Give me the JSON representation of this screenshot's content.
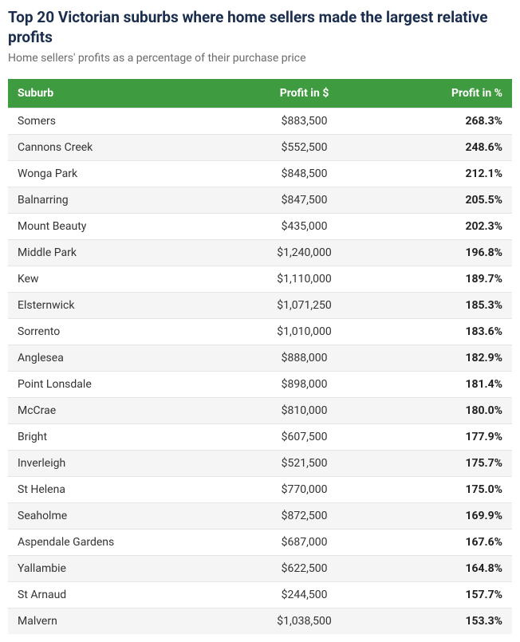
{
  "header": {
    "title": "Top 20 Victorian suburbs where home sellers made the largest relative profits",
    "subtitle": "Home sellers' profits as a percentage of their purchase price"
  },
  "table": {
    "type": "table",
    "header_bg": "#3f9b3f",
    "header_text_color": "#ffffff",
    "row_alt_bg": "#f5f5f5",
    "border_color": "#e5e5e5",
    "columns": [
      {
        "key": "suburb",
        "label": "Suburb",
        "align": "left"
      },
      {
        "key": "profit_dollar",
        "label": "Profit in $",
        "align": "center"
      },
      {
        "key": "profit_pct",
        "label": "Profit in %",
        "align": "right",
        "bold": true
      }
    ],
    "rows": [
      {
        "suburb": "Somers",
        "profit_dollar": "$883,500",
        "profit_pct": "268.3%"
      },
      {
        "suburb": "Cannons Creek",
        "profit_dollar": "$552,500",
        "profit_pct": "248.6%"
      },
      {
        "suburb": "Wonga Park",
        "profit_dollar": "$848,500",
        "profit_pct": "212.1%"
      },
      {
        "suburb": "Balnarring",
        "profit_dollar": "$847,500",
        "profit_pct": "205.5%"
      },
      {
        "suburb": "Mount Beauty",
        "profit_dollar": "$435,000",
        "profit_pct": "202.3%"
      },
      {
        "suburb": "Middle Park",
        "profit_dollar": "$1,240,000",
        "profit_pct": "196.8%"
      },
      {
        "suburb": "Kew",
        "profit_dollar": "$1,110,000",
        "profit_pct": "189.7%"
      },
      {
        "suburb": "Elsternwick",
        "profit_dollar": "$1,071,250",
        "profit_pct": "185.3%"
      },
      {
        "suburb": "Sorrento",
        "profit_dollar": "$1,010,000",
        "profit_pct": "183.6%"
      },
      {
        "suburb": "Anglesea",
        "profit_dollar": "$888,000",
        "profit_pct": "182.9%"
      },
      {
        "suburb": "Point Lonsdale",
        "profit_dollar": "$898,000",
        "profit_pct": "181.4%"
      },
      {
        "suburb": "McCrae",
        "profit_dollar": "$810,000",
        "profit_pct": "180.0%"
      },
      {
        "suburb": "Bright",
        "profit_dollar": "$607,500",
        "profit_pct": "177.9%"
      },
      {
        "suburb": "Inverleigh",
        "profit_dollar": "$521,500",
        "profit_pct": "175.7%"
      },
      {
        "suburb": "St Helena",
        "profit_dollar": "$770,000",
        "profit_pct": "175.0%"
      },
      {
        "suburb": "Seaholme",
        "profit_dollar": "$872,500",
        "profit_pct": "169.9%"
      },
      {
        "suburb": "Aspendale Gardens",
        "profit_dollar": "$687,000",
        "profit_pct": "167.6%"
      },
      {
        "suburb": "Yallambie",
        "profit_dollar": "$622,500",
        "profit_pct": "164.8%"
      },
      {
        "suburb": "St Arnaud",
        "profit_dollar": "$244,500",
        "profit_pct": "157.7%"
      },
      {
        "suburb": "Malvern",
        "profit_dollar": "$1,038,500",
        "profit_pct": "153.3%"
      }
    ]
  }
}
